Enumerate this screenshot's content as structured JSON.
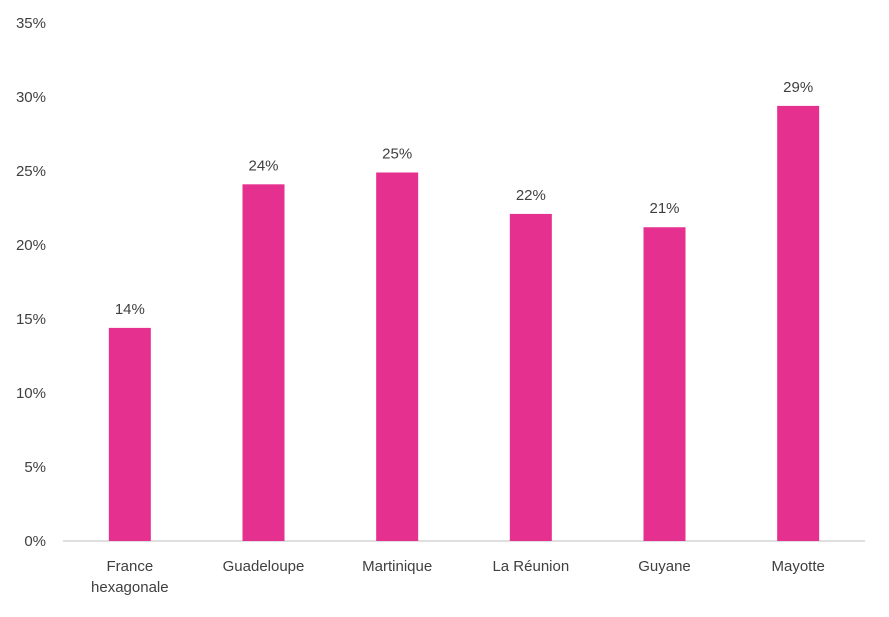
{
  "chart_data": {
    "type": "bar",
    "categories": [
      [
        "France",
        "hexagonale"
      ],
      [
        "Guadeloupe"
      ],
      [
        "Martinique"
      ],
      [
        "La Réunion"
      ],
      [
        "Guyane"
      ],
      [
        "Mayotte"
      ]
    ],
    "values": [
      14.4,
      24.1,
      24.9,
      22.1,
      21.2,
      29.4
    ],
    "data_labels": [
      "14%",
      "24%",
      "25%",
      "22%",
      "21%",
      "29%"
    ],
    "ylim": [
      0,
      35
    ],
    "yticks": [
      0,
      5,
      10,
      15,
      20,
      25,
      30,
      35
    ],
    "ytick_labels": [
      "0%",
      "5%",
      "10%",
      "15%",
      "20%",
      "25%",
      "30%",
      "35%"
    ],
    "grid": false,
    "bar_color": "#E5308F",
    "axis_color": "#BFBFBF",
    "text_color": "#404040"
  }
}
